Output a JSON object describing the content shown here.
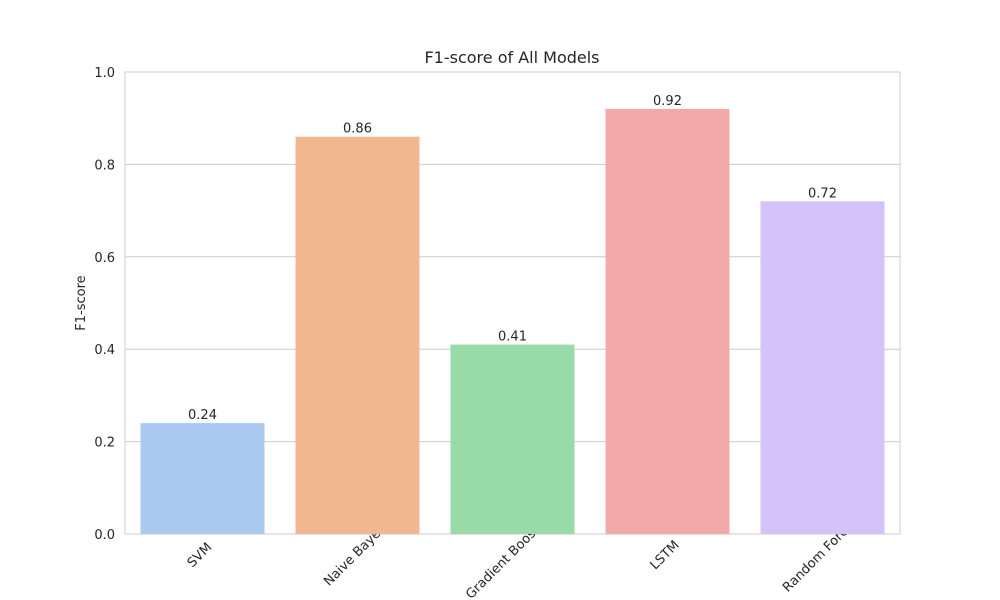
{
  "chart_data": {
    "type": "bar",
    "title": "F1-score of All Models",
    "y_label": "F1-score",
    "categories": [
      "SVM",
      "Naive Bayes",
      "Gradient Boosting",
      "LSTM",
      "Random Forest"
    ],
    "values": [
      0.24,
      0.86,
      0.41,
      0.92,
      0.72
    ],
    "colors": [
      "#abcaef",
      "#f0b791",
      "#99dba8",
      "#f1aaa8",
      "#d4c2f8"
    ],
    "ylim": [
      0,
      1
    ],
    "yticks": [
      {
        "value": 0,
        "label": "0.0"
      },
      0.2,
      0.4,
      0.6,
      0.8,
      {
        "value": 1,
        "label": "1.0"
      }
    ],
    "grid": true
  }
}
